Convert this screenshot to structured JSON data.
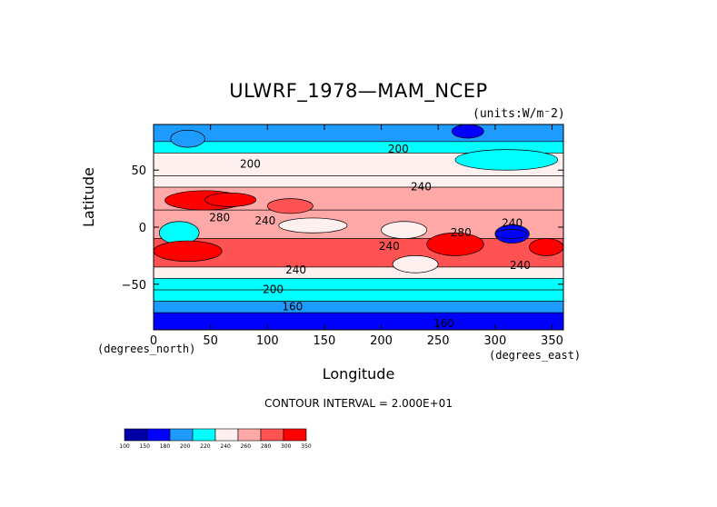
{
  "chart_data": {
    "type": "heatmap",
    "title": "ULWRF_1978—MAM_NCEP",
    "units_note": "(units:W/m⁻2)",
    "xlabel": "Longitude",
    "ylabel": "Latitude",
    "x_note": "(degrees_east)",
    "y_note": "(degrees_north)",
    "xlim": [
      0,
      360
    ],
    "ylim": [
      -90,
      90
    ],
    "x_ticks": [
      0,
      50,
      100,
      150,
      200,
      250,
      300,
      350
    ],
    "y_ticks": [
      -50,
      0,
      50
    ],
    "contour_interval_text": "CONTOUR INTERVAL = 2.000E+01",
    "levels": [
      100,
      150,
      180,
      200,
      220,
      240,
      260,
      280,
      300,
      350
    ],
    "colorbar_labels": [
      "100",
      "150",
      "180",
      "200",
      "220",
      "240",
      "260",
      "280",
      "300",
      "350"
    ],
    "colors": [
      "#0000a8",
      "#0000ff",
      "#1e9bff",
      "#00ffff",
      "#fff0f0",
      "#ffa8a8",
      "#ff5252",
      "#ff0000"
    ],
    "contour_labels": [
      {
        "x": 215,
        "y": 68,
        "text": "200"
      },
      {
        "x": 85,
        "y": 55,
        "text": "200"
      },
      {
        "x": 235,
        "y": 35,
        "text": "240"
      },
      {
        "x": 58,
        "y": 8,
        "text": "280"
      },
      {
        "x": 98,
        "y": 5,
        "text": "240"
      },
      {
        "x": 315,
        "y": 3,
        "text": "240"
      },
      {
        "x": 270,
        "y": -5,
        "text": "280"
      },
      {
        "x": 207,
        "y": -17,
        "text": "240"
      },
      {
        "x": 125,
        "y": -38,
        "text": "240"
      },
      {
        "x": 322,
        "y": -34,
        "text": "240"
      },
      {
        "x": 105,
        "y": -55,
        "text": "200"
      },
      {
        "x": 122,
        "y": -70,
        "text": "160"
      },
      {
        "x": 255,
        "y": -85,
        "text": "160"
      }
    ],
    "bands": [
      {
        "lat": [
          75,
          90
        ],
        "value": 195
      },
      {
        "lat": [
          65,
          75
        ],
        "value": 210
      },
      {
        "lat": [
          45,
          65
        ],
        "value": 225
      },
      {
        "lat": [
          35,
          45
        ],
        "value": 235
      },
      {
        "lat": [
          15,
          35
        ],
        "value": 255
      },
      {
        "lat": [
          -10,
          15
        ],
        "value": 240
      },
      {
        "lat": [
          -35,
          -10
        ],
        "value": 265
      },
      {
        "lat": [
          -45,
          -35
        ],
        "value": 235
      },
      {
        "lat": [
          -55,
          -45
        ],
        "value": 215
      },
      {
        "lat": [
          -65,
          -55
        ],
        "value": 200
      },
      {
        "lat": [
          -75,
          -65
        ],
        "value": 185
      },
      {
        "lat": [
          -90,
          -75
        ],
        "value": 160
      }
    ],
    "features": [
      {
        "lon": [
          262,
          290
        ],
        "lat": [
          78,
          90
        ],
        "value": 160
      },
      {
        "lon": [
          15,
          45
        ],
        "lat": [
          70,
          85
        ],
        "value": 190
      },
      {
        "lon": [
          265,
          355
        ],
        "lat": [
          50,
          68
        ],
        "value": 205
      },
      {
        "lon": [
          10,
          80
        ],
        "lat": [
          15,
          32
        ],
        "value": 290
      },
      {
        "lon": [
          45,
          90
        ],
        "lat": [
          18,
          30
        ],
        "value": 305
      },
      {
        "lon": [
          300,
          330
        ],
        "lat": [
          -14,
          2
        ],
        "value": 170
      },
      {
        "lon": [
          300,
          328
        ],
        "lat": [
          -10,
          -2
        ],
        "value": 150
      },
      {
        "lon": [
          5,
          40
        ],
        "lat": [
          -15,
          5
        ],
        "value": 205
      },
      {
        "lon": [
          240,
          290
        ],
        "lat": [
          -25,
          -5
        ],
        "value": 290
      },
      {
        "lon": [
          0,
          60
        ],
        "lat": [
          -30,
          -12
        ],
        "value": 280
      },
      {
        "lon": [
          330,
          360
        ],
        "lat": [
          -25,
          -10
        ],
        "value": 280
      },
      {
        "lon": [
          110,
          170
        ],
        "lat": [
          -5,
          8
        ],
        "value": 230
      },
      {
        "lon": [
          200,
          240
        ],
        "lat": [
          -10,
          5
        ],
        "value": 225
      },
      {
        "lon": [
          100,
          140
        ],
        "lat": [
          12,
          25
        ],
        "value": 265
      },
      {
        "lon": [
          210,
          250
        ],
        "lat": [
          -40,
          -25
        ],
        "value": 235
      }
    ]
  }
}
